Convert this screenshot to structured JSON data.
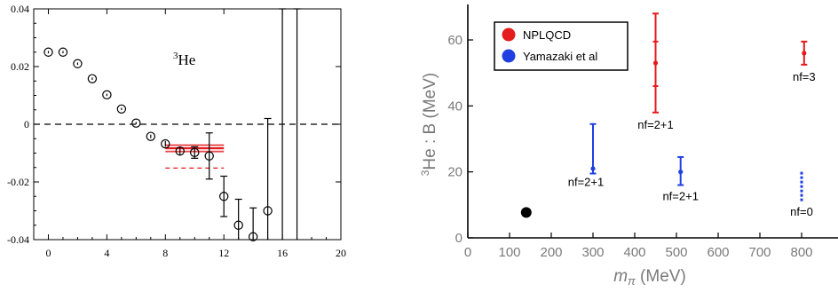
{
  "chart_data": [
    {
      "type": "scatter",
      "title": "",
      "annotation": {
        "sup": "3",
        "main": "He"
      },
      "xlabel": "",
      "ylabel": "",
      "xlim": [
        -1,
        20
      ],
      "ylim": [
        -0.04,
        0.04
      ],
      "x_ticks": [
        0,
        4,
        8,
        12,
        16,
        20
      ],
      "x_tick_labels": [
        "0",
        "4",
        "8",
        "12",
        "16",
        "20"
      ],
      "y_ticks": [
        -0.04,
        -0.02,
        0,
        0.02,
        0.04
      ],
      "y_tick_labels": [
        "-0.04",
        "-0.02",
        "0",
        "0.02",
        "0.04"
      ],
      "zero_line": {
        "y": 0,
        "style": "dashed",
        "color": "#000000"
      },
      "points": [
        {
          "x": 0,
          "y": 0.025,
          "err": 0.0004
        },
        {
          "x": 1,
          "y": 0.025,
          "err": 0.0004
        },
        {
          "x": 2,
          "y": 0.021,
          "err": 0.0004
        },
        {
          "x": 3,
          "y": 0.0158,
          "err": 0.0004
        },
        {
          "x": 4,
          "y": 0.0102,
          "err": 0.0004
        },
        {
          "x": 5,
          "y": 0.0053,
          "err": 0.0004
        },
        {
          "x": 6,
          "y": 0.0004,
          "err": 0.0004
        },
        {
          "x": 7,
          "y": -0.0042,
          "err": 0.0006
        },
        {
          "x": 8,
          "y": -0.0068,
          "err": 0.001
        },
        {
          "x": 9,
          "y": -0.0093,
          "err": 0.0015
        },
        {
          "x": 10,
          "y": -0.0098,
          "err": 0.002
        },
        {
          "x": 11,
          "y": -0.011,
          "err": 0.008
        },
        {
          "x": 12,
          "y": -0.025,
          "err": 0.007
        },
        {
          "x": 13,
          "y": -0.035,
          "err": 0.009
        },
        {
          "x": 14,
          "y": -0.039,
          "err": 0.01
        },
        {
          "x": 15,
          "y": -0.03,
          "err": 0.032
        },
        {
          "x": 16,
          "y": -0.02,
          "err": 0.06
        },
        {
          "x": 17,
          "y": -0.02,
          "err": 0.06
        }
      ],
      "fit_band": {
        "x_range": [
          8,
          12
        ],
        "center": -0.0083,
        "band": [
          -0.0095,
          -0.0072
        ],
        "extra_dashed": -0.0152,
        "color": "#e41a1c"
      }
    },
    {
      "type": "scatter",
      "title": "",
      "xlabel": "m_π (MeV)",
      "ylabel": "³He : B (MeV)",
      "xlim": [
        0,
        850
      ],
      "ylim": [
        0,
        70
      ],
      "x_ticks": [
        0,
        100,
        200,
        300,
        400,
        500,
        600,
        700,
        800
      ],
      "y_ticks": [
        0,
        20,
        40,
        60
      ],
      "legend": {
        "position": "top-left",
        "entries": [
          "NPLQCD",
          "Yamazaki et al"
        ]
      },
      "series": [
        {
          "name": "NPLQCD",
          "color": "#e41a1c",
          "points": [
            {
              "x": 450,
              "y": 53,
              "err_lo": 38,
              "err_hi": 68,
              "ticks": [
                46,
                59.5
              ],
              "label": "nf=2+1"
            },
            {
              "x": 806,
              "y": 56,
              "err_lo": 52.5,
              "err_hi": 59.5,
              "label": "nf=3"
            }
          ]
        },
        {
          "name": "Yamazaki et al",
          "color": "#1f3fe0",
          "points": [
            {
              "x": 300,
              "y": 21,
              "err_lo": 19.5,
              "err_hi": 34.5,
              "label": "nf=2+1"
            },
            {
              "x": 510,
              "y": 20,
              "err_lo": 16,
              "err_hi": 24.5,
              "label": "nf=2+1"
            },
            {
              "x": 800,
              "y": 17,
              "err_lo": 11,
              "err_hi": 20,
              "dashed": true,
              "label": "nf=0"
            }
          ]
        },
        {
          "color": "#000000",
          "points": [
            {
              "x": 140,
              "y": 7.7
            }
          ]
        }
      ]
    }
  ]
}
